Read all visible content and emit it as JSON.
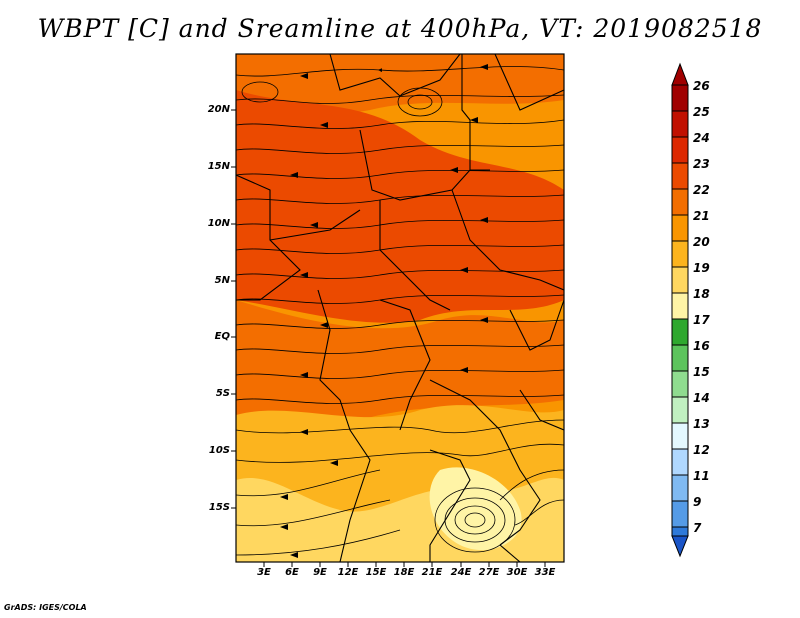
{
  "title": "WBPT [C] and Sreamline at 400hPa, VT: 2019082518",
  "footer": "GrADS: IGES/COLA",
  "map": {
    "variable": "Wet-bulb potential temperature",
    "units": "C",
    "level": "400hPa",
    "valid_time": "2019082518",
    "lon_range": [
      0,
      35
    ],
    "lat_range": [
      -20.5,
      23.5
    ],
    "lat_tick_labels": [
      "20N",
      "15N",
      "10N",
      "5N",
      "EQ",
      "5S",
      "10S",
      "15S"
    ],
    "lat_tick_values": [
      20,
      15,
      10,
      5,
      0,
      -5,
      -10,
      -15
    ],
    "lon_tick_labels": [
      "3E",
      "6E",
      "9E",
      "12E",
      "15E",
      "18E",
      "21E",
      "24E",
      "27E",
      "30E",
      "33E"
    ],
    "lon_tick_values": [
      3,
      6,
      9,
      12,
      15,
      18,
      21,
      24,
      27,
      30,
      33
    ]
  },
  "colorbar": {
    "labels": [
      "26",
      "25",
      "24",
      "23",
      "22",
      "21",
      "20",
      "19",
      "18",
      "17",
      "16",
      "15",
      "14",
      "13",
      "12",
      "11",
      "9",
      "7"
    ],
    "colors": [
      "#a00000",
      "#c01000",
      "#dc2800",
      "#eb4a00",
      "#f36e00",
      "#f99500",
      "#fcb41e",
      "#ffd760",
      "#fff4a6",
      "#2fa82f",
      "#5cc45c",
      "#8fdc8f",
      "#c0f0c0",
      "#e4f8ff",
      "#b0d8ff",
      "#80baf2",
      "#559be6",
      "#2f7ad9",
      "#1a55c8"
    ]
  },
  "fields": {
    "regions": [
      {
        "name": "north-warm-band",
        "value": 23
      },
      {
        "name": "far-north-field",
        "value": 22
      },
      {
        "name": "central-band",
        "value": 22
      },
      {
        "name": "south-field",
        "value": 20
      },
      {
        "name": "southern-cool-patch",
        "value": 19
      }
    ]
  }
}
